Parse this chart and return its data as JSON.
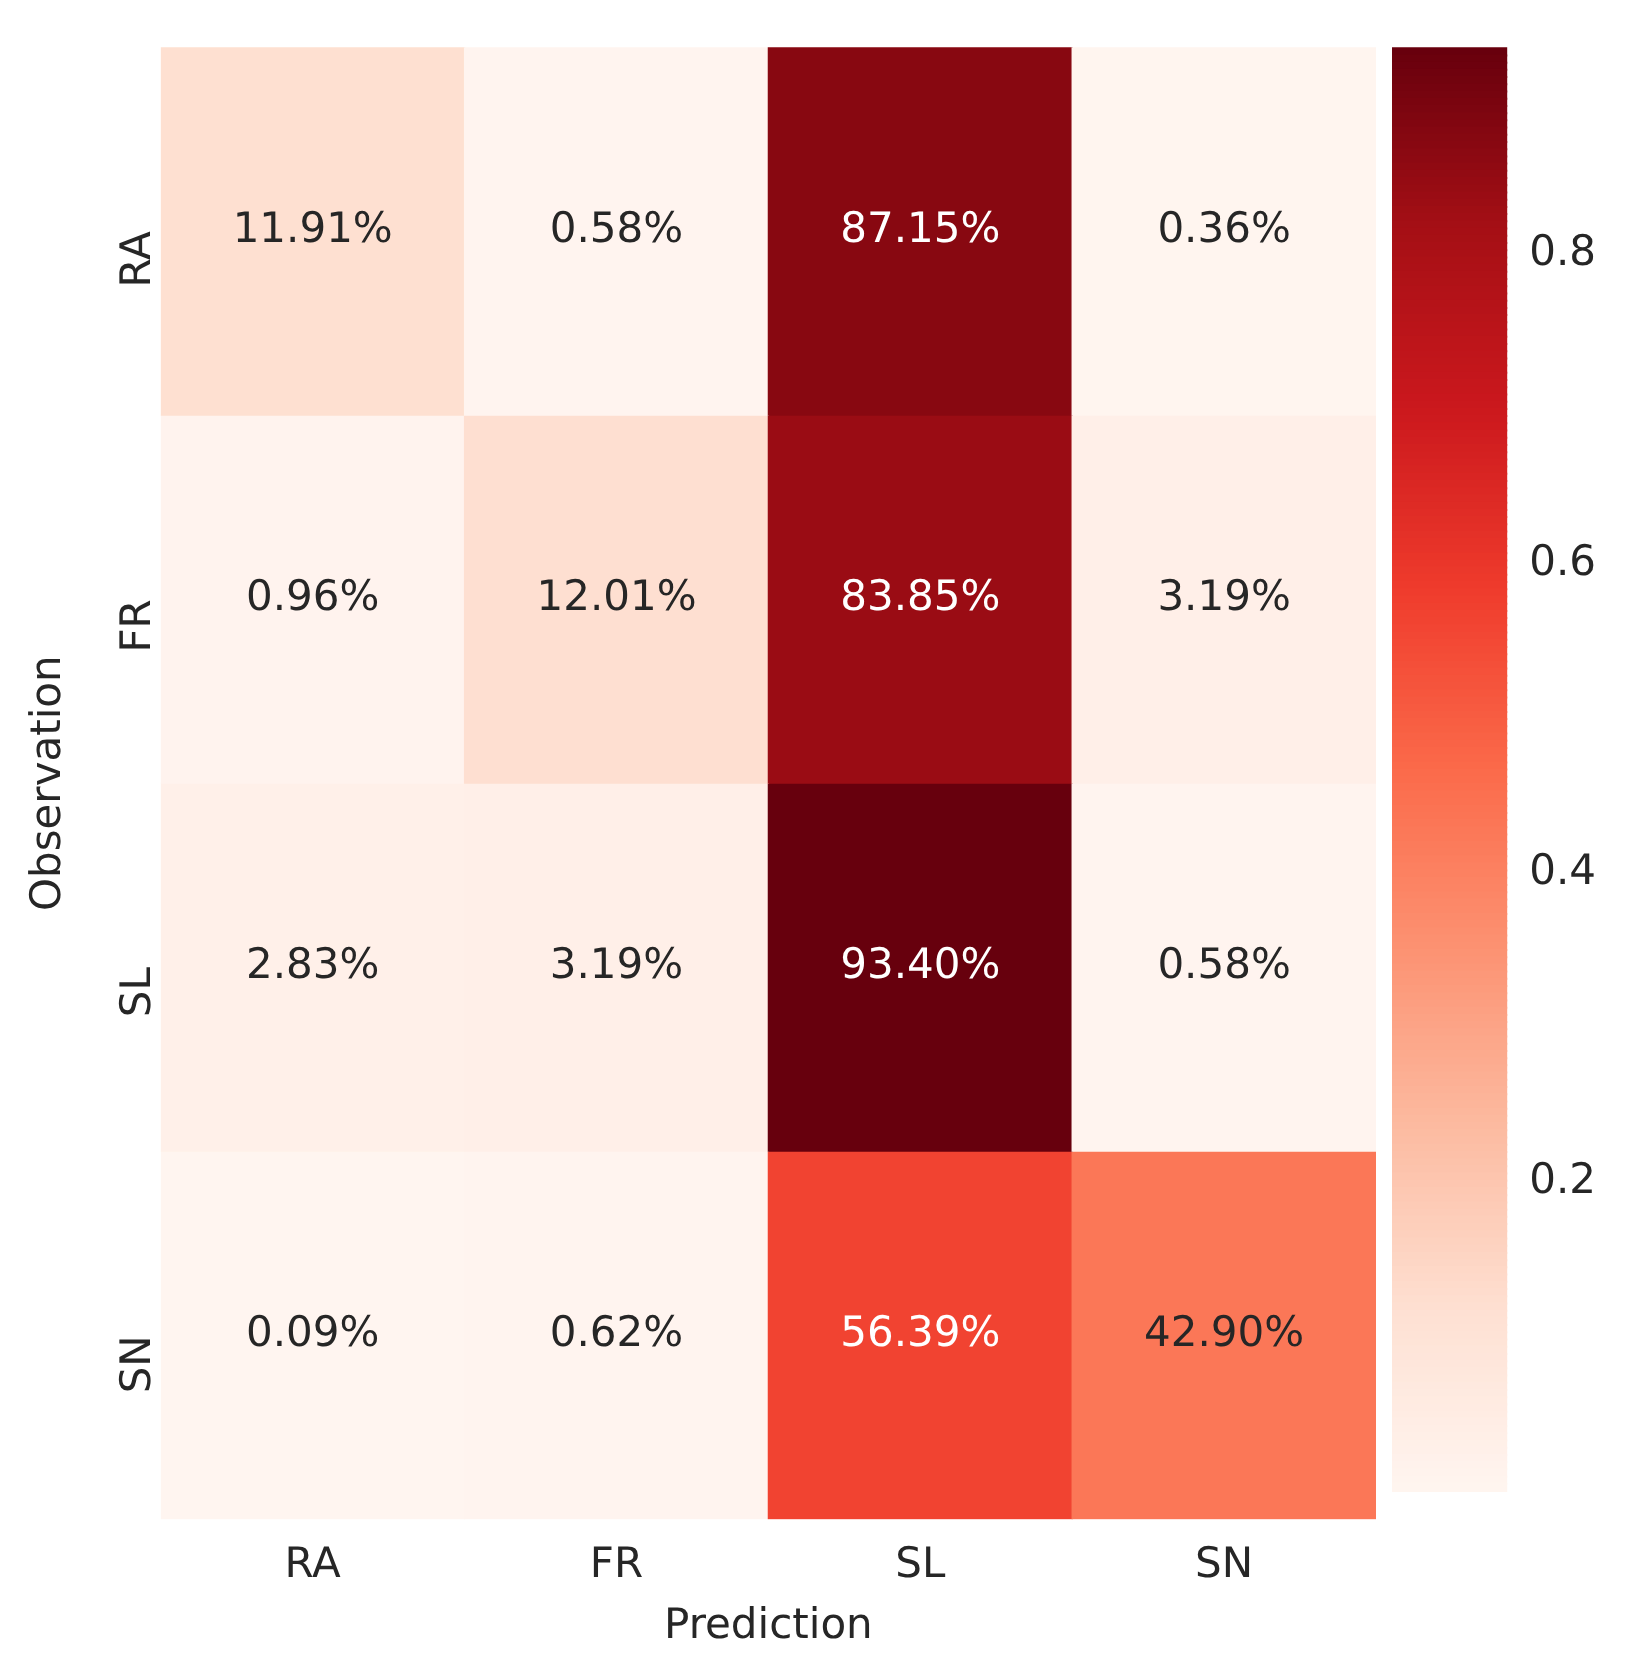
{
  "chart_data": {
    "type": "heatmap",
    "xlabel": "Prediction",
    "ylabel": "Observation",
    "categories": [
      "RA",
      "FR",
      "SL",
      "SN"
    ],
    "y_categories": [
      "RA",
      "FR",
      "SL",
      "SN"
    ],
    "cells": [
      [
        0.1191,
        0.0058,
        0.8715,
        0.0036
      ],
      [
        0.0096,
        0.1201,
        0.8385,
        0.0319
      ],
      [
        0.0283,
        0.0319,
        0.934,
        0.0058
      ],
      [
        0.0009,
        0.0062,
        0.5639,
        0.429
      ]
    ],
    "cell_labels": [
      [
        "11.91%",
        "0.58%",
        "87.15%",
        "0.36%"
      ],
      [
        "0.96%",
        "12.01%",
        "83.85%",
        "3.19%"
      ],
      [
        "2.83%",
        "3.19%",
        "93.40%",
        "0.58%"
      ],
      [
        "0.09%",
        "0.62%",
        "56.39%",
        "42.90%"
      ]
    ],
    "clim": [
      0.0009,
      0.934
    ],
    "cticks": [
      0.2,
      0.4,
      0.6,
      0.8
    ]
  }
}
